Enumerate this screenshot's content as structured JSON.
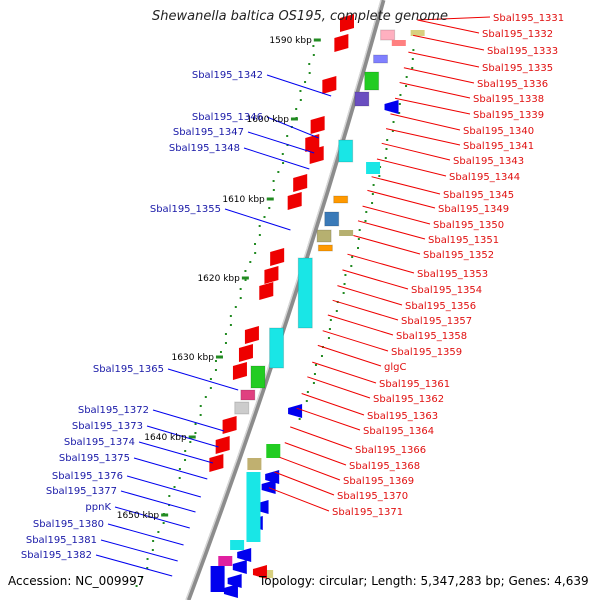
{
  "title": "Shewanella baltica OS195, complete genome",
  "accession": "Accession: NC_009997",
  "topology": "Topology: circular; Length: 5,347,283 bp; Genes: 4,639",
  "ruler": [
    {
      "label": "1590 kbp"
    },
    {
      "label": "1600 kbp"
    },
    {
      "label": "1610 kbp"
    },
    {
      "label": "1620 kbp"
    },
    {
      "label": "1630 kbp"
    },
    {
      "label": "1640 kbp"
    },
    {
      "label": "1650 kbp"
    }
  ],
  "left_labels": [
    "Sbal195_1342",
    "Sbal195_1346",
    "Sbal195_1347",
    "Sbal195_1348",
    "Sbal195_1355",
    "Sbal195_1365",
    "Sbal195_1372",
    "Sbal195_1373",
    "Sbal195_1374",
    "Sbal195_1375",
    "Sbal195_1376",
    "Sbal195_1377",
    "ppnK",
    "Sbal195_1380",
    "Sbal195_1381",
    "Sbal195_1382"
  ],
  "right_labels": [
    "Sbal195_1331",
    "Sbal195_1332",
    "Sbal195_1333",
    "Sbal195_1335",
    "Sbal195_1336",
    "Sbal195_1338",
    "Sbal195_1339",
    "Sbal195_1340",
    "Sbal195_1341",
    "Sbal195_1343",
    "Sbal195_1344",
    "Sbal195_1345",
    "Sbal195_1349",
    "Sbal195_1350",
    "Sbal195_1351",
    "Sbal195_1352",
    "Sbal195_1353",
    "Sbal195_1354",
    "Sbal195_1356",
    "Sbal195_1357",
    "Sbal195_1358",
    "Sbal195_1359",
    "glgC",
    "Sbal195_1361",
    "Sbal195_1362",
    "Sbal195_1363",
    "Sbal195_1364",
    "Sbal195_1366",
    "Sbal195_1368",
    "Sbal195_1369",
    "Sbal195_1370",
    "Sbal195_1371"
  ],
  "colors": {
    "left_label": "#1a1aa8",
    "right_label": "#e01010",
    "forward_gene": "#0000ee",
    "reverse_gene": "#ee0000",
    "cyan_gene": "#19e6e6",
    "green_gene": "#22cc22",
    "backbone": "#888888",
    "tick": "#228b22"
  }
}
